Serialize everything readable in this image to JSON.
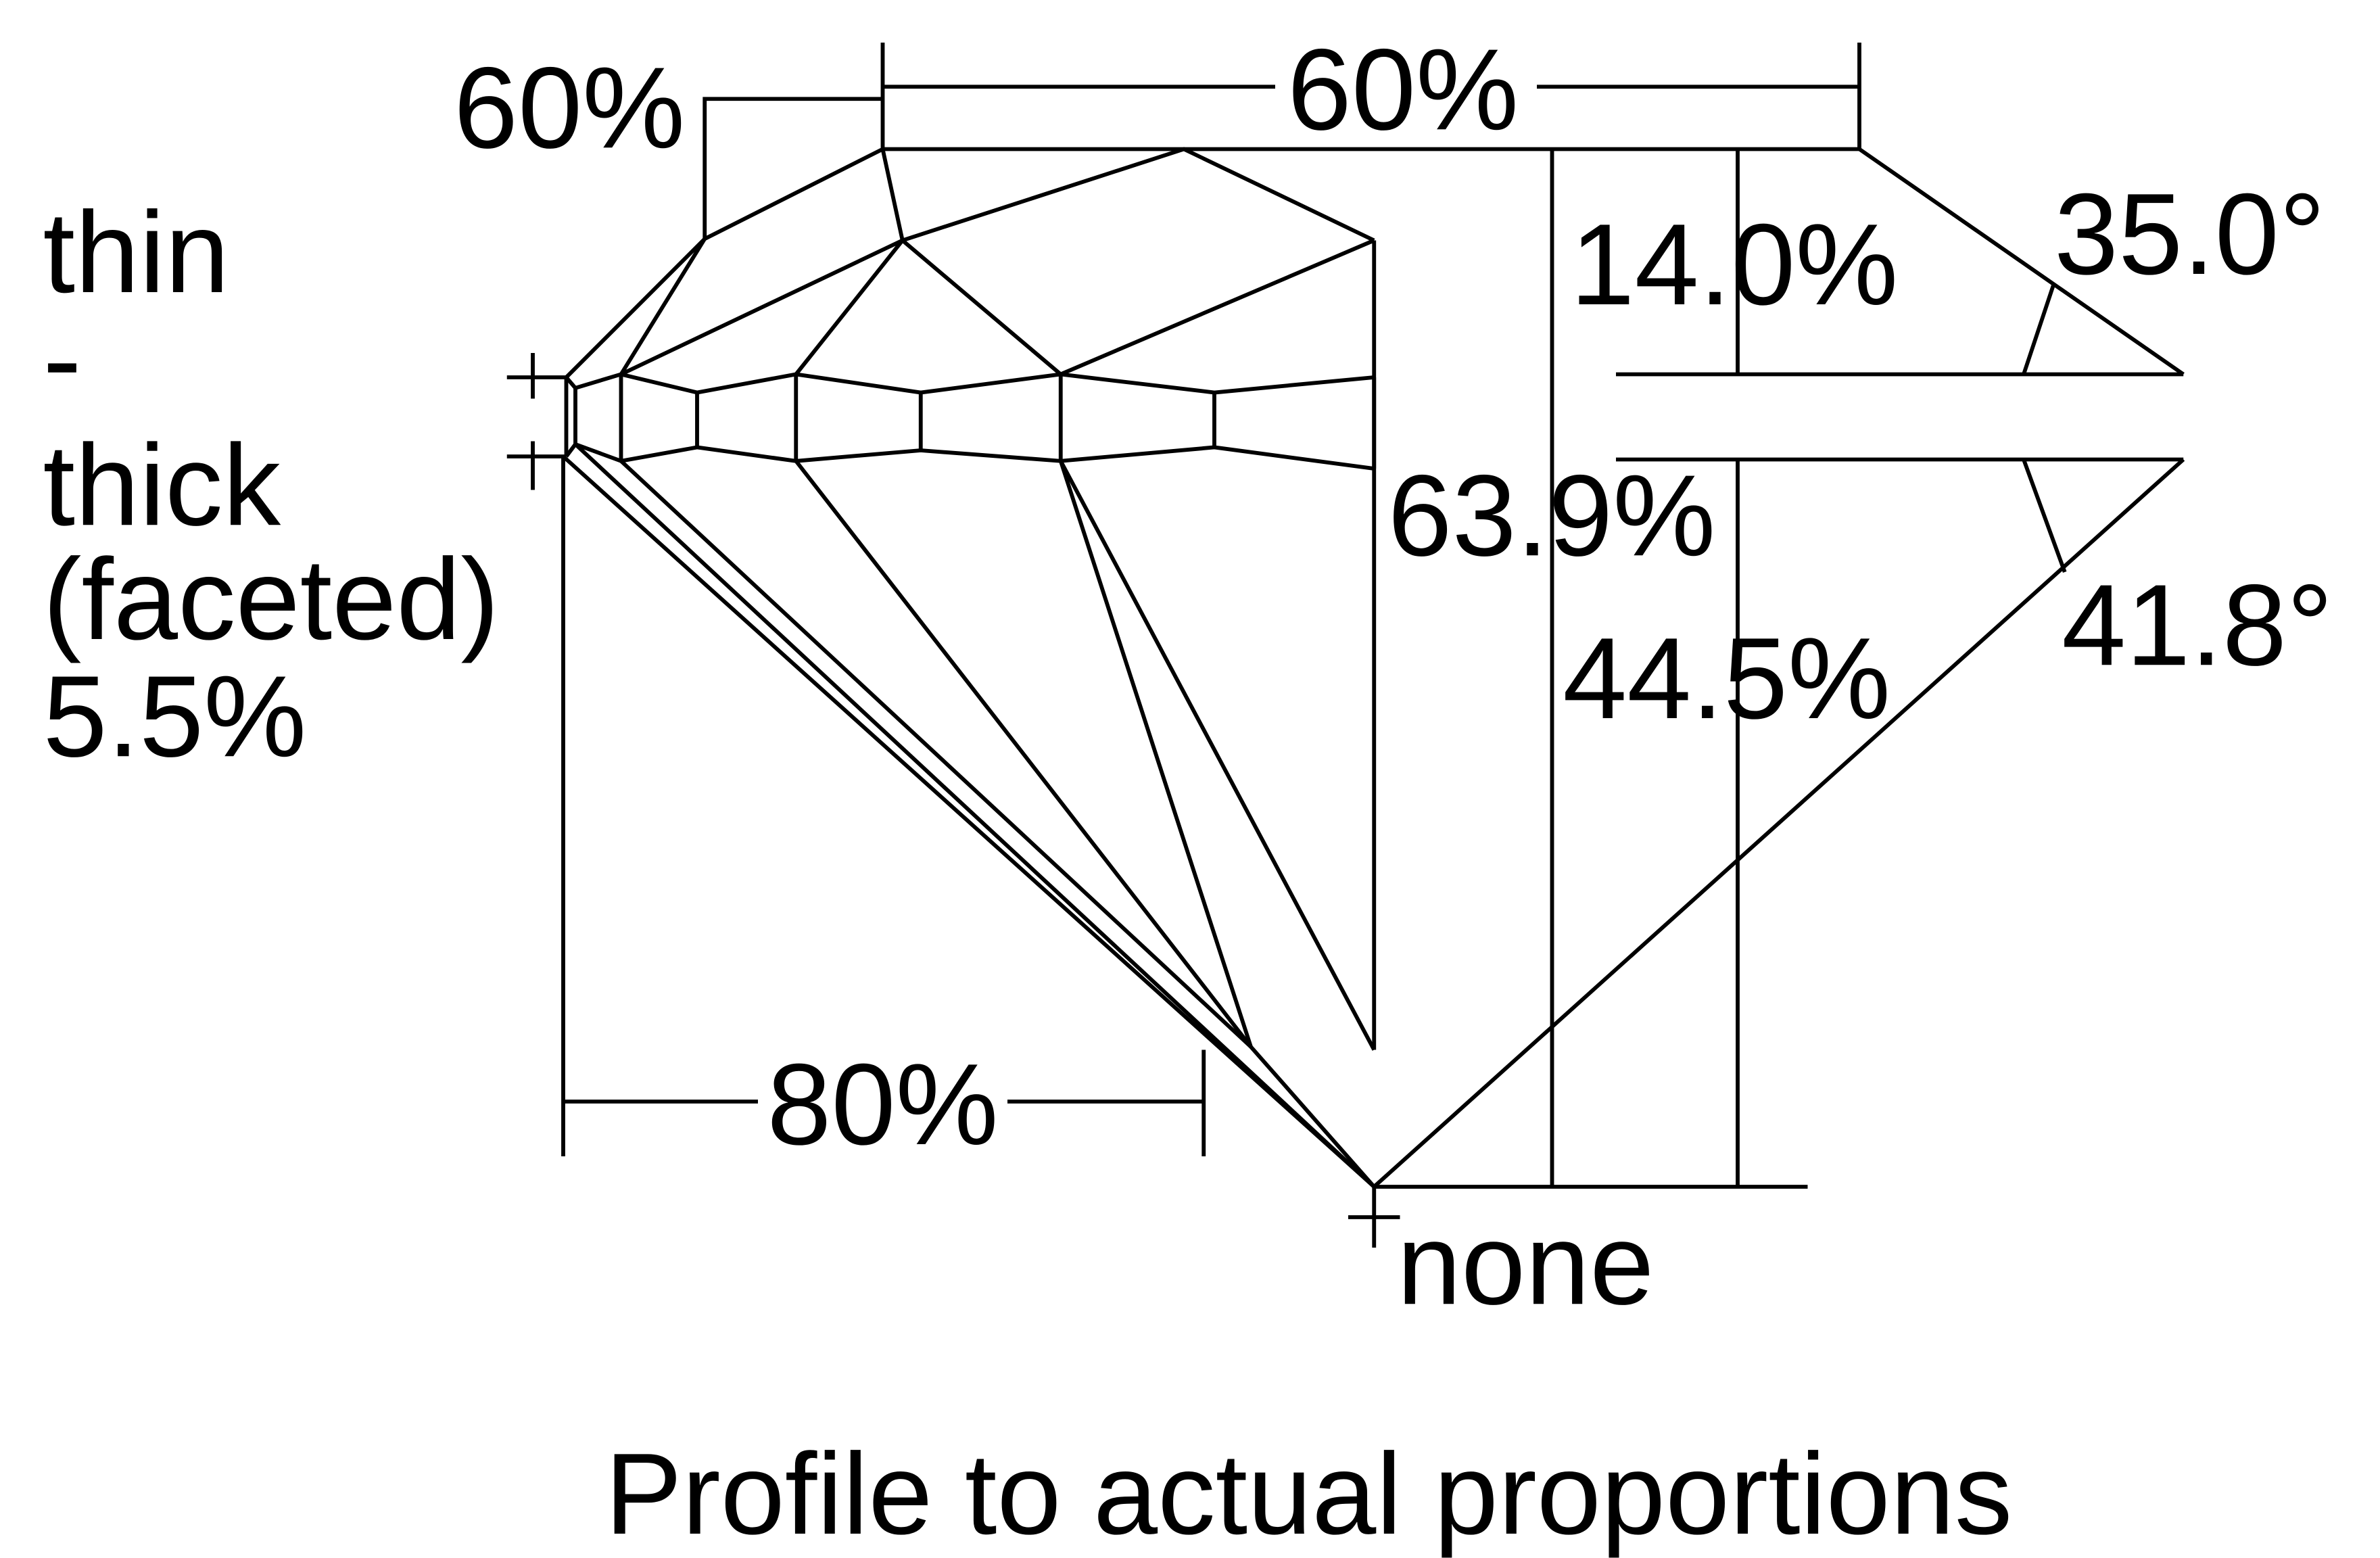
{
  "caption": "Profile to actual proportions",
  "measurements": {
    "star_length": "60%",
    "table": "60%",
    "crown_height": "14.0%",
    "crown_angle": "35.0°",
    "girdle": [
      "thin",
      "-",
      "thick",
      "(faceted)",
      "5.5%"
    ],
    "total_depth": "63.9%",
    "pavilion_depth": "44.5%",
    "pavilion_angle": "41.8°",
    "lower_half_length": "80%",
    "culet": "none"
  }
}
